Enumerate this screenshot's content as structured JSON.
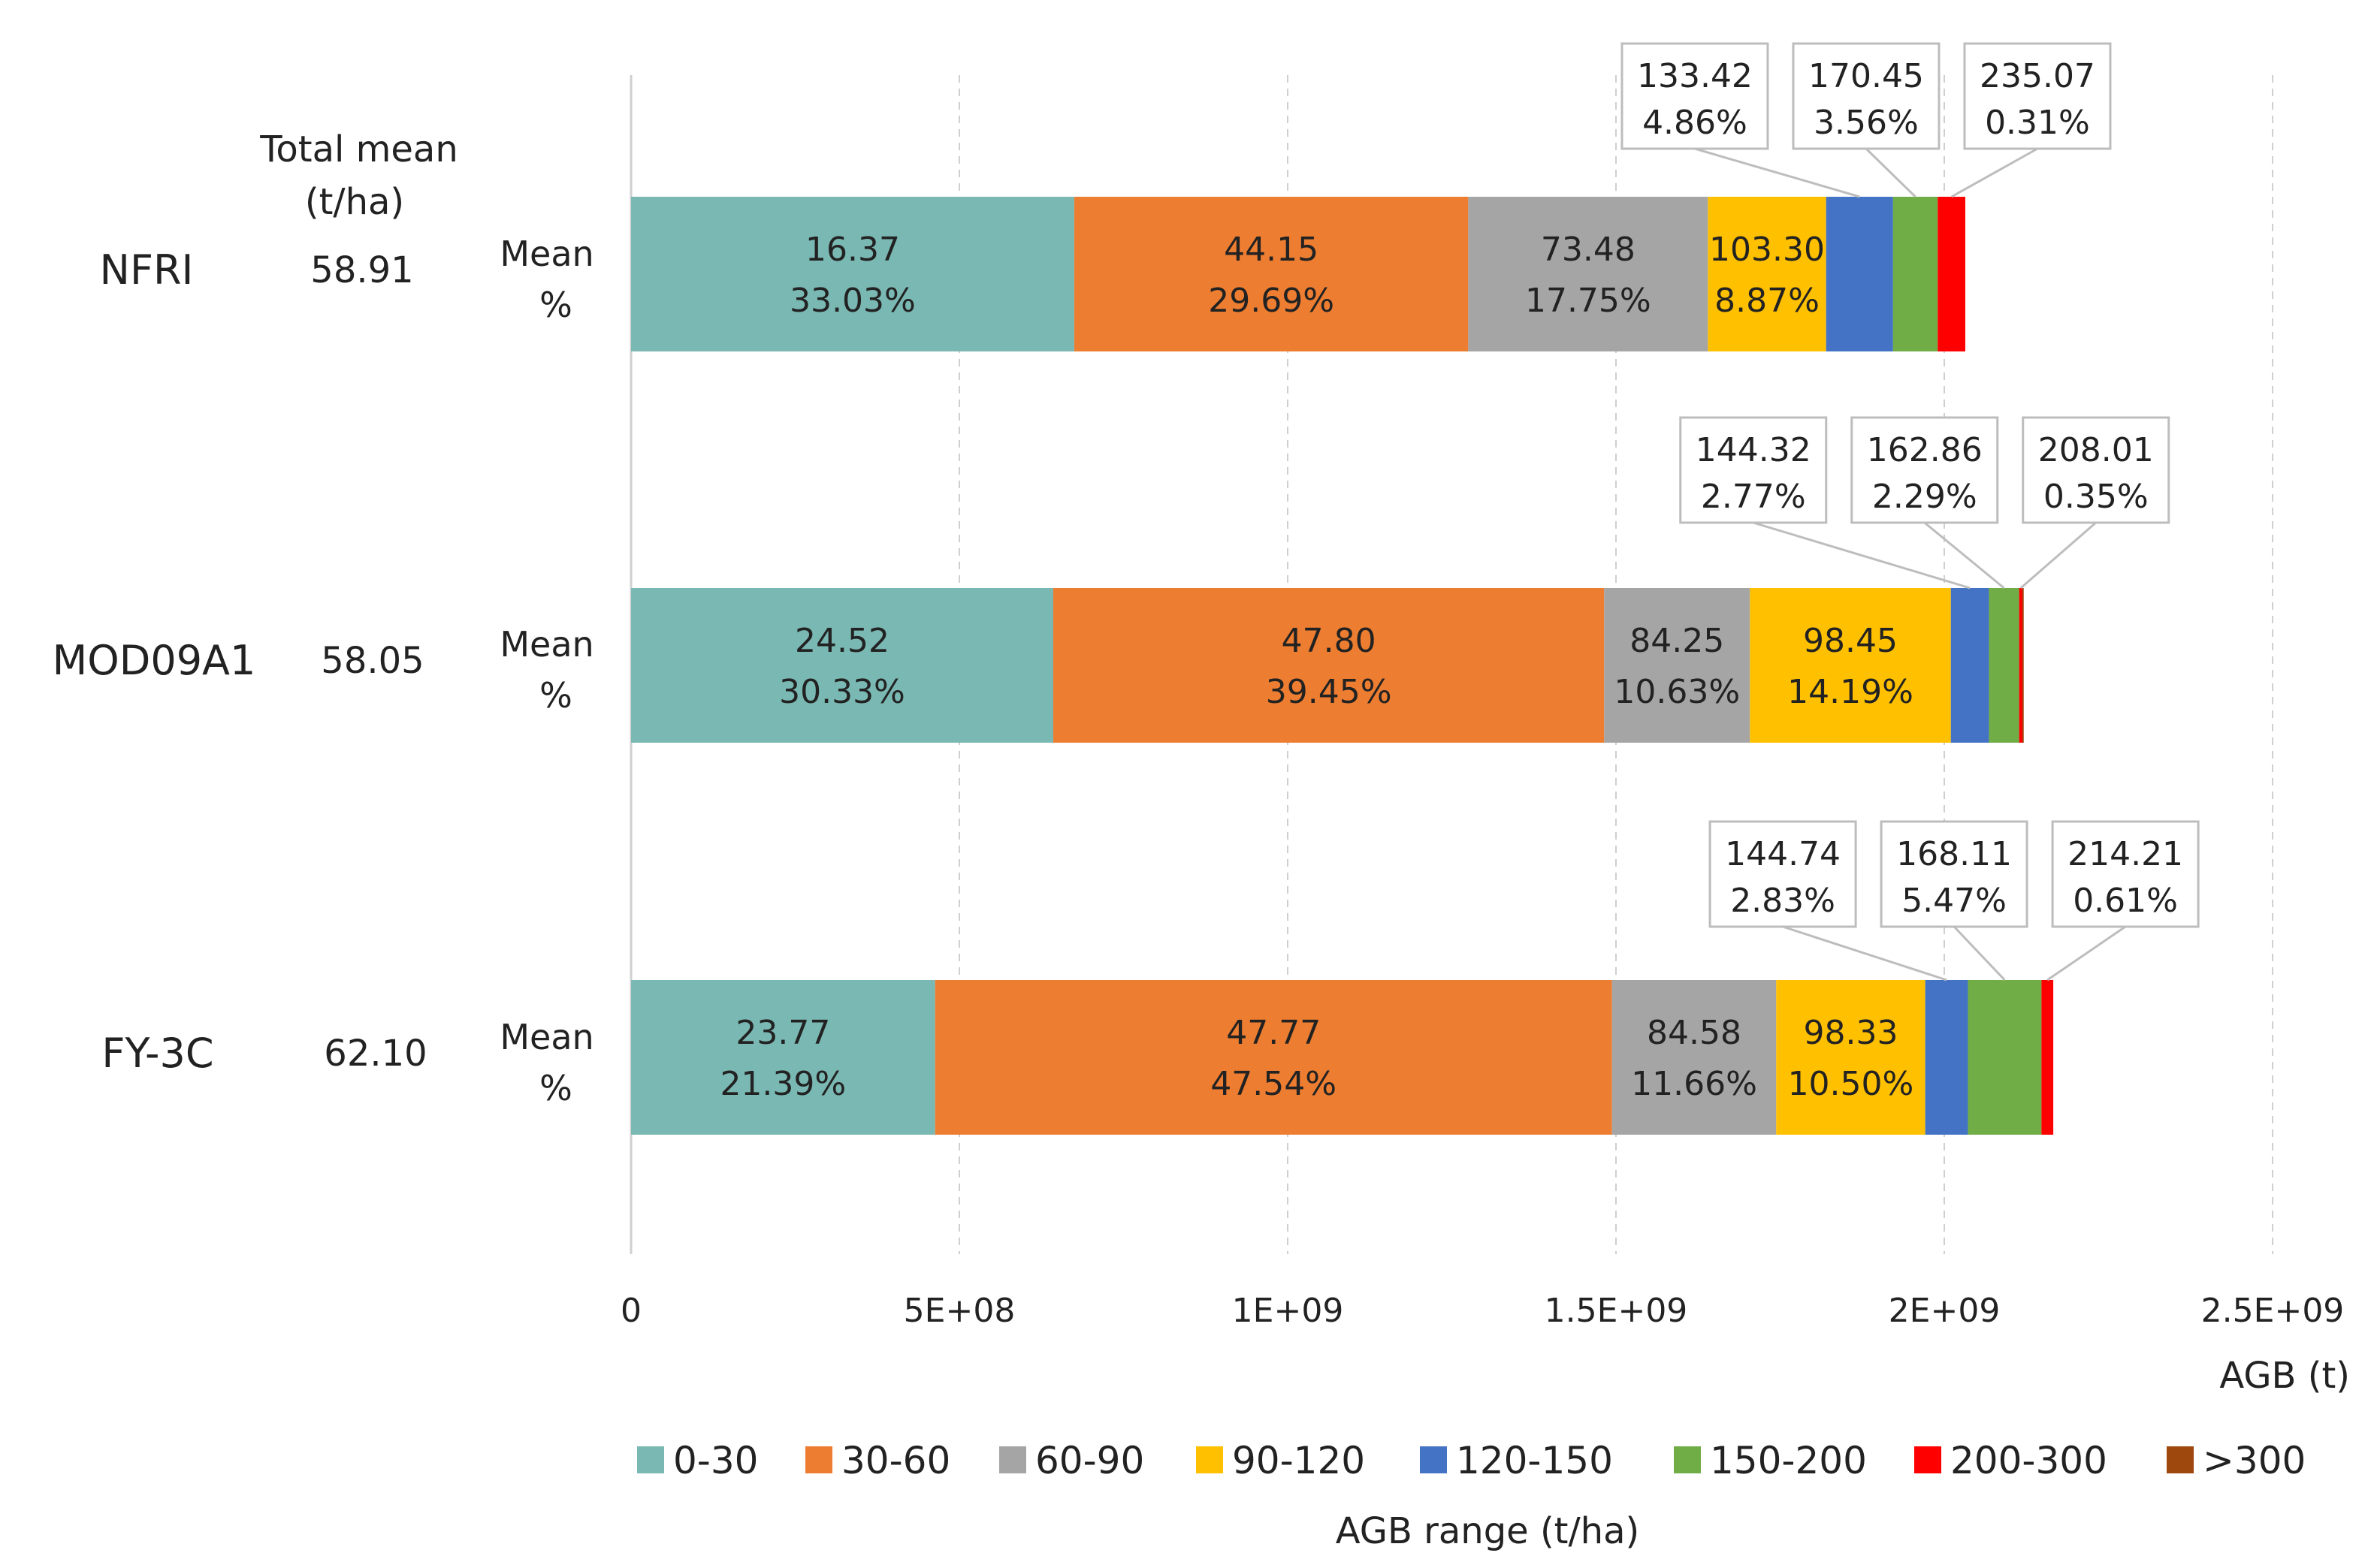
{
  "chart_data": {
    "type": "bar",
    "orientation": "horizontal",
    "stacked": true,
    "header": {
      "total_mean_line1": "Total mean",
      "total_mean_line2": "(t/ha)"
    },
    "row_label_line1": "Mean",
    "row_label_line2": "%",
    "xlabel": "AGB (t)",
    "legend_title": "AGB range (t/ha)",
    "xlim": [
      0,
      2500000000
    ],
    "xticks": [
      {
        "value": 0,
        "label": "0"
      },
      {
        "value": 500000000,
        "label": "5E+08"
      },
      {
        "value": 1000000000,
        "label": "1E+09"
      },
      {
        "value": 1500000000,
        "label": "1.5E+09"
      },
      {
        "value": 2000000000,
        "label": "2E+09"
      },
      {
        "value": 2500000000,
        "label": "2.5E+09"
      }
    ],
    "grid": "vertical dashed",
    "series": [
      {
        "name": "0-30",
        "color": "#7AB8B3"
      },
      {
        "name": "30-60",
        "color": "#ED7D31"
      },
      {
        "name": "60-90",
        "color": "#A5A5A5"
      },
      {
        "name": "90-120",
        "color": "#FFC000"
      },
      {
        "name": "120-150",
        "color": "#4472C4"
      },
      {
        "name": "150-200",
        "color": "#70AD47"
      },
      {
        "name": "200-300",
        "color": "#FF0000"
      },
      {
        "name": ">300",
        "color": "#9E480E"
      }
    ],
    "rows": [
      {
        "name": "NFRI",
        "total_mean": "58.91",
        "values": [
          675000000,
          600000000,
          365000000,
          180000000,
          102000000,
          68000000,
          42000000,
          0
        ],
        "segment_labels": [
          {
            "mean": "16.37",
            "pct": "33.03%"
          },
          {
            "mean": "44.15",
            "pct": "29.69%"
          },
          {
            "mean": "73.48",
            "pct": "17.75%"
          },
          {
            "mean": "103.30",
            "pct": "8.87%"
          }
        ],
        "callouts": [
          {
            "series": 4,
            "mean": "133.42",
            "pct": "4.86%"
          },
          {
            "series": 5,
            "mean": "170.45",
            "pct": "3.56%"
          },
          {
            "series": 6,
            "mean": "235.07",
            "pct": "0.31%"
          }
        ]
      },
      {
        "name": "MOD09A1",
        "total_mean": "58.05",
        "values": [
          643000000,
          839000000,
          222000000,
          306000000,
          58000000,
          46000000,
          5000000,
          2000000
        ],
        "segment_labels": [
          {
            "mean": "24.52",
            "pct": "30.33%"
          },
          {
            "mean": "47.80",
            "pct": "39.45%"
          },
          {
            "mean": "84.25",
            "pct": "10.63%"
          },
          {
            "mean": "98.45",
            "pct": "14.19%"
          }
        ],
        "callouts": [
          {
            "series": 4,
            "mean": "144.32",
            "pct": "2.77%"
          },
          {
            "series": 5,
            "mean": "162.86",
            "pct": "2.29%"
          },
          {
            "series": 6,
            "mean": "208.01",
            "pct": "0.35%"
          }
        ]
      },
      {
        "name": "FY-3C",
        "total_mean": "62.10",
        "values": [
          463000000,
          1031000000,
          250000000,
          227000000,
          65000000,
          112000000,
          18000000,
          0
        ],
        "segment_labels": [
          {
            "mean": "23.77",
            "pct": "21.39%"
          },
          {
            "mean": "47.77",
            "pct": "47.54%"
          },
          {
            "mean": "84.58",
            "pct": "11.66%"
          },
          {
            "mean": "98.33",
            "pct": "10.50%"
          }
        ],
        "callouts": [
          {
            "series": 4,
            "mean": "144.74",
            "pct": "2.83%"
          },
          {
            "series": 5,
            "mean": "168.11",
            "pct": "5.47%"
          },
          {
            "series": 6,
            "mean": "214.21",
            "pct": "0.61%"
          }
        ]
      }
    ]
  }
}
